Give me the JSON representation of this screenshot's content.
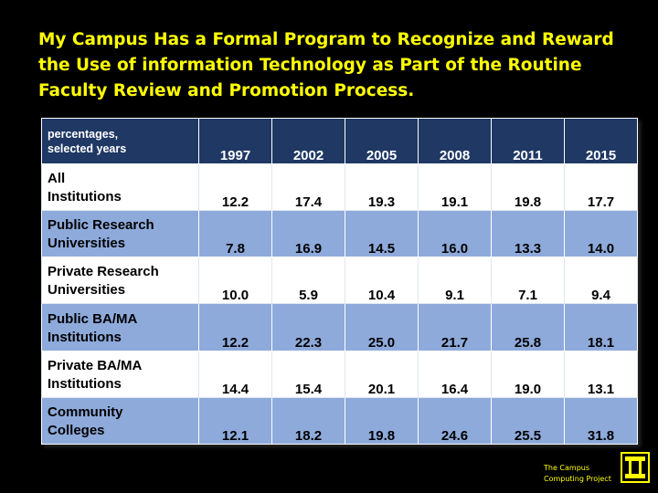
{
  "title": "My Campus Has a Formal Program to Recognize and Reward the Use of information Technology as Part of the Routine Faculty Review and Promotion Process.",
  "footer": {
    "line1": "The Campus",
    "line2": "Computing Project",
    "logo_icon": "campus-computing-logo-icon"
  },
  "colors": {
    "background": "#000000",
    "title": "#ffff00",
    "header": "#1f3864",
    "band": "#8eaadb"
  },
  "chart_data": {
    "type": "table",
    "corner_label": [
      "percentages,",
      "selected years"
    ],
    "columns": [
      "1997",
      "2002",
      "2005",
      "2008",
      "2011",
      "2015"
    ],
    "rows": [
      {
        "label": [
          "All",
          "Institutions"
        ],
        "values": [
          "12.2",
          "17.4",
          "19.3",
          "19.1",
          "19.8",
          "17.7"
        ]
      },
      {
        "label": [
          "Public Research",
          "Universities"
        ],
        "values": [
          "7.8",
          "16.9",
          "14.5",
          "16.0",
          "13.3",
          "14.0"
        ]
      },
      {
        "label": [
          "Private Research",
          "Universities"
        ],
        "values": [
          "10.0",
          "5.9",
          "10.4",
          "9.1",
          "7.1",
          "9.4"
        ]
      },
      {
        "label": [
          "Public BA/MA",
          "Institutions"
        ],
        "values": [
          "12.2",
          "22.3",
          "25.0",
          "21.7",
          "25.8",
          "18.1"
        ]
      },
      {
        "label": [
          "Private BA/MA",
          "Institutions"
        ],
        "values": [
          "14.4",
          "15.4",
          "20.1",
          "16.4",
          "19.0",
          "13.1"
        ]
      },
      {
        "label": [
          "Community",
          "Colleges"
        ],
        "values": [
          "12.1",
          "18.2",
          "19.8",
          "24.6",
          "25.5",
          "31.8"
        ]
      }
    ]
  }
}
